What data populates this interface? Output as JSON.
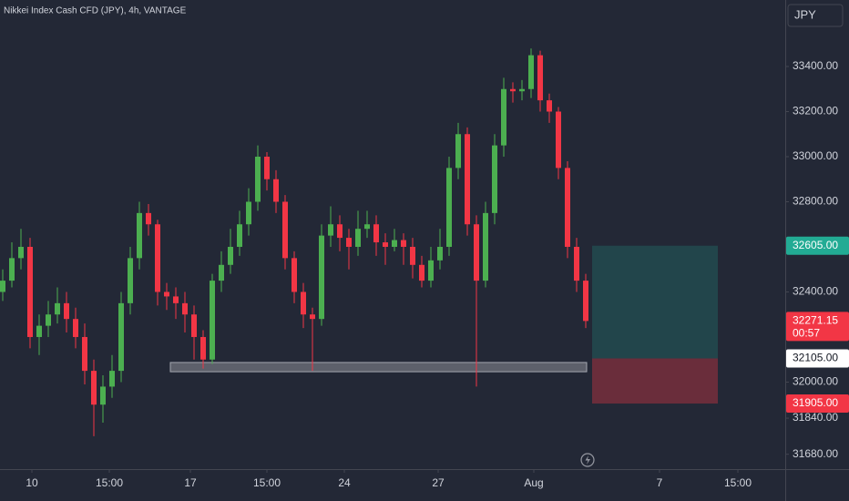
{
  "chart_data": {
    "type": "candlestick",
    "title": "Nikkei Index Cash CFD (JPY), 4h, VANTAGE",
    "currency": "JPY",
    "up_color": "#4caf50",
    "down_color": "#f23645",
    "series": {
      "open": [
        32400,
        32450,
        32550,
        32600,
        32200,
        32250,
        32300,
        32350,
        32280,
        32200,
        32050,
        31900,
        31980,
        32050,
        32350,
        32550,
        32750,
        32700,
        32400,
        32380,
        32350,
        32300,
        32200,
        32100,
        32450,
        32520,
        32600,
        32700,
        32800,
        33000,
        32900,
        32800,
        32550,
        32400,
        32300,
        32280,
        32650,
        32700,
        32640,
        32600,
        32680,
        32700,
        32620,
        32600,
        32630,
        32600,
        32520,
        32450,
        32540,
        32600,
        32950,
        33100,
        32700,
        32450,
        32750,
        33050,
        33300,
        33290,
        33300,
        33450,
        33250,
        33200,
        32950,
        32600,
        32450
      ],
      "high": [
        32500,
        32620,
        32680,
        32640,
        32300,
        32360,
        32420,
        32400,
        32330,
        32260,
        32100,
        32030,
        32120,
        32400,
        32600,
        32800,
        32790,
        32720,
        32440,
        32420,
        32400,
        32340,
        32230,
        32480,
        32580,
        32680,
        32760,
        32860,
        33050,
        33020,
        32940,
        32830,
        32580,
        32440,
        32330,
        32700,
        32780,
        32740,
        32680,
        32760,
        32760,
        32740,
        32660,
        32680,
        32660,
        32640,
        32560,
        32600,
        32680,
        33000,
        33150,
        33130,
        32740,
        32800,
        33100,
        33350,
        33330,
        33340,
        33480,
        33470,
        33280,
        33220,
        32980,
        32640,
        32480
      ],
      "low": [
        32360,
        32420,
        32500,
        32150,
        32120,
        32200,
        32260,
        32220,
        32150,
        31990,
        31760,
        31820,
        31930,
        32000,
        32300,
        32500,
        32650,
        32340,
        32320,
        32280,
        32220,
        32100,
        32060,
        32080,
        32400,
        32480,
        32560,
        32650,
        32760,
        32850,
        32750,
        32500,
        32350,
        32240,
        32050,
        32250,
        32600,
        32580,
        32500,
        32560,
        32640,
        32560,
        32520,
        32580,
        32520,
        32460,
        32420,
        32420,
        32500,
        32560,
        32900,
        32650,
        31980,
        32420,
        32700,
        33000,
        33240,
        33250,
        33260,
        33200,
        33150,
        32900,
        32550,
        32400,
        32240
      ],
      "close": [
        32450,
        32550,
        32600,
        32200,
        32250,
        32300,
        32350,
        32280,
        32200,
        32050,
        31900,
        31980,
        32050,
        32350,
        32550,
        32750,
        32700,
        32400,
        32380,
        32350,
        32300,
        32200,
        32100,
        32450,
        32520,
        32600,
        32700,
        32800,
        33000,
        32900,
        32800,
        32550,
        32400,
        32300,
        32280,
        32650,
        32700,
        32640,
        32600,
        32680,
        32700,
        32620,
        32600,
        32630,
        32600,
        32520,
        32450,
        32540,
        32600,
        32950,
        33100,
        32700,
        32450,
        32750,
        33050,
        33300,
        33290,
        33300,
        33450,
        33250,
        33200,
        32950,
        32600,
        32450,
        32271.15
      ]
    },
    "xlim": [
      -0.3,
      85.9
    ],
    "xticks": [
      {
        "value": 3.2,
        "label": "10"
      },
      {
        "value": 11.7,
        "label": "15:00"
      },
      {
        "value": 20.6,
        "label": "17"
      },
      {
        "value": 29,
        "label": "15:00"
      },
      {
        "value": 37.5,
        "label": "24"
      },
      {
        "value": 47.8,
        "label": "27"
      },
      {
        "value": 58.3,
        "label": "Aug"
      },
      {
        "value": 72.1,
        "label": "7"
      },
      {
        "value": 80.7,
        "label": "15:00"
      }
    ],
    "ylim": [
      31614,
      33695
    ],
    "yticks": [
      {
        "value": 33400,
        "label": "33400.00"
      },
      {
        "value": 33200,
        "label": "33200.00"
      },
      {
        "value": 33000,
        "label": "33000.00"
      },
      {
        "value": 32800,
        "label": "32800.00"
      },
      {
        "value": 32400,
        "label": "32400.00"
      },
      {
        "value": 32000,
        "label": "32000.00"
      },
      {
        "value": 31840,
        "label": "31840.00"
      },
      {
        "value": 31680,
        "label": "31680.00"
      }
    ],
    "price_tags": [
      {
        "value": 32605,
        "label": "32605.00",
        "color": "#22ab94"
      },
      {
        "value": 32271.15,
        "label": "32271.15",
        "countdown": "00:57",
        "color": "#f23645"
      },
      {
        "value": 32105,
        "label": "32105.00",
        "color": "#ffffff"
      },
      {
        "value": 31905,
        "label": "31905.00",
        "color": "#f23645"
      }
    ],
    "zone": {
      "top": 32087,
      "bottom": 32046,
      "x": [
        18.4,
        64.1
      ]
    },
    "position": {
      "target": 32605,
      "entry": 32105,
      "stop": 31905,
      "x": [
        64.7,
        78.5
      ]
    }
  }
}
